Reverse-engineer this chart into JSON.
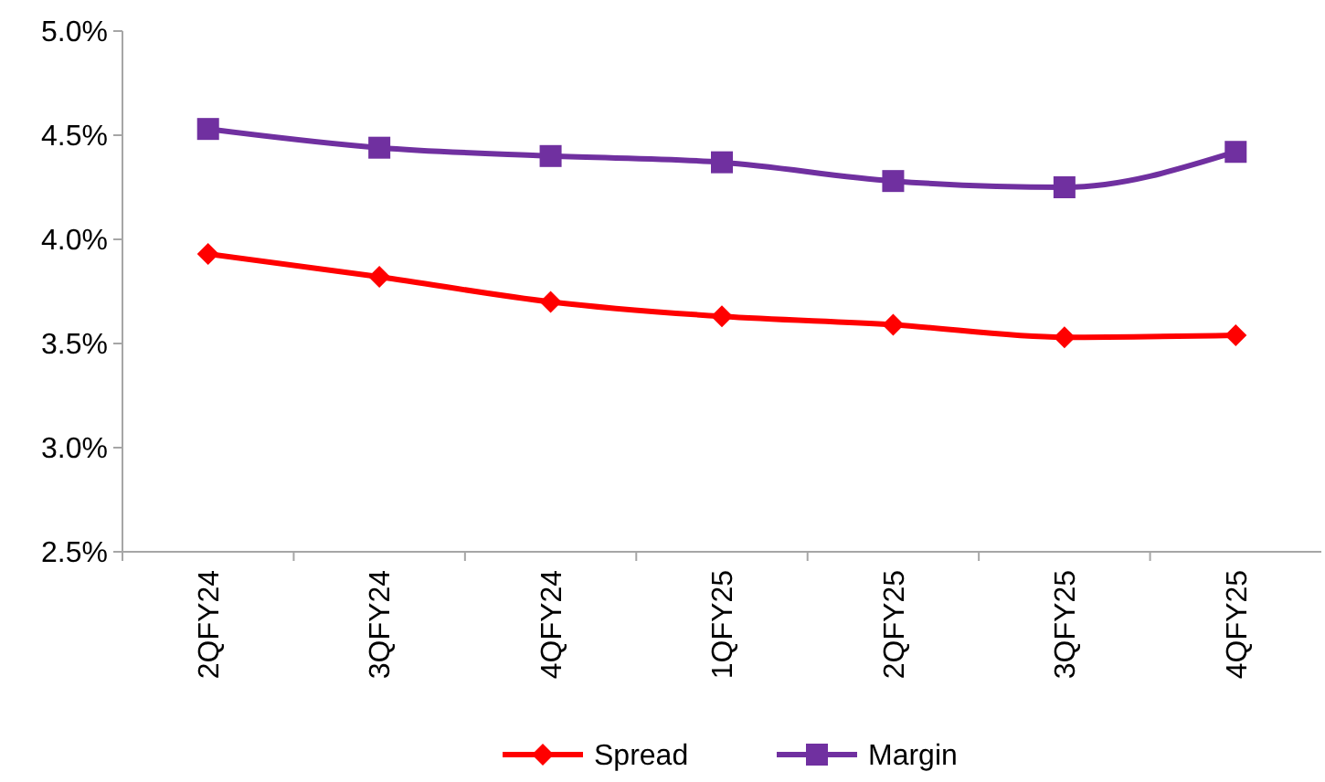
{
  "chart_data": {
    "type": "line",
    "categories": [
      "2QFY24",
      "3QFY24",
      "4QFY24",
      "1QFY25",
      "2QFY25",
      "3QFY25",
      "4QFY25"
    ],
    "series": [
      {
        "name": "Spread",
        "color": "#ff0000",
        "marker": "diamond",
        "values": [
          3.93,
          3.82,
          3.7,
          3.63,
          3.59,
          3.53,
          3.54
        ]
      },
      {
        "name": "Margin",
        "color": "#7030a0",
        "marker": "square",
        "values": [
          4.53,
          4.44,
          4.4,
          4.37,
          4.28,
          4.25,
          4.42
        ]
      }
    ],
    "ylim": [
      2.5,
      5.0
    ],
    "yticks": [
      {
        "value": 2.5,
        "label": "2.5%"
      },
      {
        "value": 3.0,
        "label": "3.0%"
      },
      {
        "value": 3.5,
        "label": "3.5%"
      },
      {
        "value": 4.0,
        "label": "4.0%"
      },
      {
        "value": 4.5,
        "label": "4.5%"
      },
      {
        "value": 5.0,
        "label": "5.0%"
      }
    ],
    "grid": false,
    "legend": "bottom",
    "line_style": "solid"
  }
}
